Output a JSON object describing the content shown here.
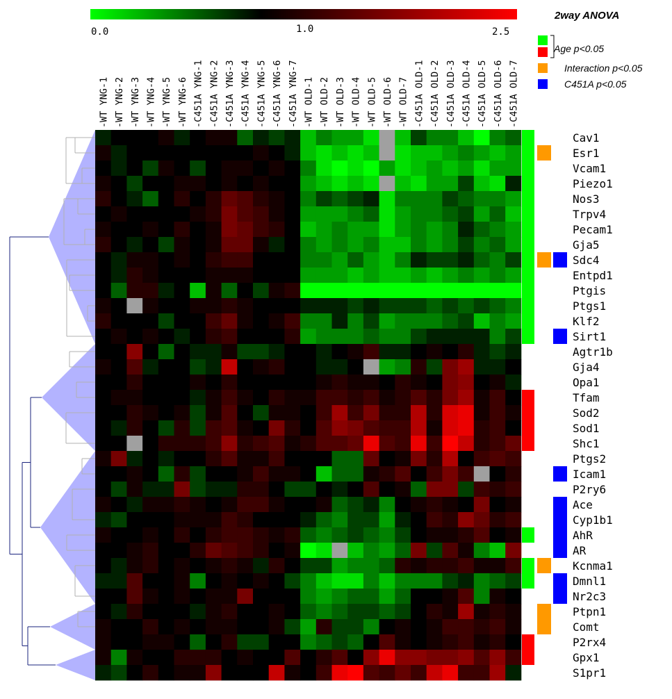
{
  "chart_data": {
    "type": "heatmap",
    "title": "",
    "color_scale": {
      "min_label": "0.0",
      "mid_label": "1.0",
      "max_label": "2.5",
      "low_color": "#00ff00",
      "mid_color": "#000000",
      "high_color": "#ff0000",
      "missing_color": "#a0a0a0"
    },
    "columns": [
      "-WT YNG-1",
      "-WT YNG-2",
      "-WT YNG-3",
      "-WT YNG-4",
      "-WT YNG-5",
      "-WT YNG-6",
      "-C451A YNG-1",
      "-C451A YNG-2",
      "-C451A YNG-3",
      "-C451A YNG-4",
      "-C451A YNG-5",
      "-C451A YNG-6",
      "-C451A YNG-7",
      "-WT OLD-1",
      "-WT OLD-2",
      "-WT OLD-3",
      "-WT OLD-4",
      "-WT OLD-5",
      "-WT OLD-6",
      "-WT OLD-7",
      "-C451A OLD-1",
      "-C451A OLD-2",
      "-C451A OLD-3",
      "-C451A OLD-4",
      "-C451A OLD-5",
      "-C451A OLD-6",
      "-C451A OLD-7"
    ],
    "rows": [
      "Cav1",
      "Esr1",
      "Vcam1",
      "Piezo1",
      "Nos3",
      "Trpv4",
      "Pecam1",
      "Gja5",
      "Sdc4",
      "Entpd1",
      "Ptgis",
      "Ptgs1",
      "Klf2",
      "Sirt1",
      "Agtr1b",
      "Gja4",
      "Opa1",
      "Tfam",
      "Sod2",
      "Sod1",
      "Shc1",
      "Ptgs2",
      "Icam1",
      "P2ry6",
      "Ace",
      "Cyp1b1",
      "AhR",
      "AR",
      "Kcnma1",
      "Dmnl1",
      "Nr2c3",
      "Ptpn1",
      "Comt",
      "P2rx4",
      "Gpx1",
      "S1pr1"
    ],
    "values": [
      [
        0.9,
        1.0,
        1.0,
        1.0,
        1.1,
        0.9,
        1.0,
        1.1,
        1.1,
        0.7,
        0.9,
        0.8,
        0.9,
        0.4,
        0.6,
        0.5,
        0.5,
        0.3,
        null,
        0.4,
        0.8,
        0.6,
        0.6,
        0.4,
        0.2,
        0.6,
        0.7
      ],
      [
        1.1,
        0.9,
        1.0,
        1.0,
        1.0,
        1.0,
        1.0,
        1.0,
        1.0,
        1.0,
        1.1,
        1.0,
        0.9,
        0.4,
        0.3,
        0.4,
        0.3,
        0.4,
        null,
        0.3,
        0.4,
        0.4,
        0.5,
        0.6,
        0.5,
        0.4,
        0.5
      ],
      [
        1.0,
        0.9,
        1.0,
        0.8,
        1.1,
        1.0,
        0.8,
        1.0,
        1.1,
        1.1,
        1.0,
        1.1,
        1.0,
        0.6,
        0.3,
        0.2,
        0.3,
        0.2,
        0.5,
        0.3,
        0.4,
        0.5,
        0.4,
        0.5,
        0.3,
        0.5,
        0.5
      ],
      [
        1.1,
        1.0,
        0.8,
        1.0,
        1.0,
        1.1,
        1.1,
        1.0,
        1.1,
        1.0,
        1.1,
        1.0,
        1.0,
        0.5,
        0.4,
        0.3,
        0.4,
        0.3,
        null,
        0.4,
        0.3,
        0.5,
        0.5,
        0.8,
        0.4,
        0.3,
        0.9
      ],
      [
        1.2,
        1.0,
        0.9,
        0.7,
        1.0,
        1.2,
        1.0,
        1.2,
        1.5,
        1.4,
        1.2,
        1.1,
        1.0,
        0.6,
        0.8,
        0.7,
        0.8,
        0.9,
        0.3,
        0.6,
        0.6,
        0.6,
        0.8,
        0.7,
        0.6,
        0.6,
        0.5
      ],
      [
        1.0,
        1.1,
        1.0,
        1.0,
        1.0,
        1.0,
        1.1,
        1.2,
        1.6,
        1.4,
        1.3,
        1.1,
        1.0,
        0.5,
        0.5,
        0.5,
        0.6,
        0.7,
        0.3,
        0.5,
        0.6,
        0.6,
        0.7,
        0.8,
        0.5,
        0.7,
        0.4
      ],
      [
        1.1,
        1.0,
        1.0,
        1.1,
        1.0,
        1.2,
        1.0,
        1.1,
        1.6,
        1.5,
        1.3,
        1.2,
        1.0,
        0.4,
        0.5,
        0.6,
        0.5,
        0.5,
        0.3,
        0.5,
        0.6,
        0.5,
        0.6,
        0.9,
        0.7,
        0.6,
        0.5
      ],
      [
        1.2,
        1.0,
        0.9,
        1.0,
        0.8,
        1.1,
        1.0,
        1.1,
        1.5,
        1.5,
        1.1,
        0.9,
        1.0,
        0.6,
        0.5,
        0.6,
        0.5,
        0.6,
        0.4,
        0.4,
        0.6,
        0.5,
        0.6,
        0.8,
        0.6,
        0.7,
        0.5
      ],
      [
        1.0,
        0.9,
        1.1,
        1.1,
        1.0,
        1.1,
        1.0,
        1.2,
        1.3,
        1.3,
        1.0,
        1.0,
        1.0,
        0.6,
        0.6,
        0.5,
        0.7,
        0.5,
        0.4,
        0.6,
        0.9,
        0.8,
        0.8,
        0.9,
        0.7,
        0.6,
        0.8
      ],
      [
        1.0,
        0.9,
        1.2,
        1.1,
        1.0,
        1.0,
        1.0,
        1.1,
        1.1,
        1.1,
        1.0,
        1.0,
        1.0,
        0.5,
        0.5,
        0.5,
        0.4,
        0.5,
        0.4,
        0.4,
        0.5,
        0.4,
        0.5,
        0.6,
        0.5,
        0.6,
        0.5
      ],
      [
        1.0,
        0.7,
        1.2,
        1.2,
        0.9,
        1.0,
        0.4,
        1.1,
        0.7,
        1.0,
        0.8,
        1.1,
        1.2,
        0.2,
        0.2,
        0.2,
        0.2,
        0.2,
        0.2,
        0.2,
        0.2,
        0.2,
        0.2,
        0.2,
        0.2,
        0.2,
        0.2
      ],
      [
        1.1,
        1.0,
        null,
        1.1,
        1.0,
        1.0,
        1.1,
        1.1,
        1.2,
        1.1,
        1.0,
        1.0,
        1.0,
        0.9,
        0.9,
        0.9,
        0.8,
        0.9,
        0.8,
        0.8,
        0.8,
        0.7,
        0.8,
        0.7,
        0.8,
        0.7,
        0.6
      ],
      [
        1.2,
        1.0,
        1.0,
        1.0,
        0.8,
        1.0,
        1.0,
        1.3,
        1.5,
        1.1,
        1.0,
        1.1,
        1.3,
        0.6,
        0.6,
        0.9,
        0.6,
        0.8,
        0.5,
        0.6,
        0.6,
        0.6,
        0.7,
        0.8,
        0.4,
        0.6,
        0.5
      ],
      [
        1.0,
        1.1,
        1.0,
        1.1,
        1.0,
        0.9,
        1.0,
        1.2,
        1.3,
        1.0,
        1.0,
        1.0,
        1.2,
        0.5,
        0.6,
        0.6,
        0.6,
        0.7,
        0.6,
        0.6,
        0.8,
        0.9,
        0.9,
        0.9,
        0.9,
        0.6,
        0.8
      ],
      [
        1.0,
        1.0,
        1.7,
        1.0,
        0.7,
        1.0,
        0.9,
        0.9,
        1.1,
        0.8,
        0.8,
        0.9,
        1.0,
        1.0,
        0.9,
        1.0,
        1.1,
        1.3,
        0.9,
        0.9,
        1.0,
        1.1,
        1.0,
        1.2,
        0.9,
        0.8,
        0.9
      ],
      [
        1.1,
        1.0,
        1.4,
        0.9,
        1.0,
        1.0,
        0.8,
        0.9,
        2.0,
        1.0,
        1.1,
        1.2,
        1.0,
        1.0,
        0.9,
        0.9,
        1.0,
        null,
        0.5,
        0.6,
        1.2,
        0.8,
        1.6,
        1.8,
        0.9,
        0.9,
        1.0
      ],
      [
        1.0,
        1.0,
        1.2,
        1.0,
        1.0,
        1.0,
        1.1,
        1.0,
        1.2,
        1.0,
        1.0,
        1.0,
        1.0,
        1.0,
        1.1,
        1.2,
        1.1,
        1.1,
        1.0,
        1.2,
        1.1,
        1.0,
        1.6,
        1.7,
        1.0,
        1.1,
        0.9
      ],
      [
        1.0,
        1.1,
        1.1,
        1.0,
        1.0,
        1.0,
        0.9,
        1.1,
        1.3,
        1.1,
        1.0,
        1.2,
        1.1,
        1.1,
        1.3,
        1.3,
        1.2,
        1.3,
        1.1,
        1.2,
        1.4,
        1.2,
        1.6,
        1.8,
        1.1,
        1.3,
        1.0
      ],
      [
        1.0,
        1.0,
        1.2,
        1.1,
        1.0,
        1.1,
        0.8,
        1.1,
        1.4,
        1.0,
        0.8,
        1.1,
        1.1,
        1.0,
        1.3,
        1.8,
        1.3,
        1.6,
        1.2,
        1.2,
        1.9,
        1.2,
        2.1,
        2.2,
        1.1,
        1.3,
        1.1
      ],
      [
        1.0,
        0.9,
        1.2,
        1.0,
        0.8,
        1.2,
        0.8,
        1.3,
        1.4,
        1.1,
        1.0,
        1.6,
        1.2,
        1.0,
        1.4,
        1.7,
        1.6,
        1.4,
        1.3,
        1.3,
        1.9,
        1.1,
        2.1,
        2.2,
        1.2,
        1.3,
        1.0
      ],
      [
        1.0,
        1.0,
        null,
        1.0,
        1.2,
        1.2,
        1.2,
        1.3,
        1.7,
        1.2,
        1.3,
        1.4,
        1.1,
        1.2,
        1.4,
        1.4,
        1.5,
        2.2,
        1.4,
        1.3,
        2.2,
        1.3,
        2.3,
        2.0,
        1.2,
        1.3,
        1.5
      ],
      [
        1.1,
        1.6,
        0.9,
        1.0,
        0.9,
        1.0,
        1.0,
        1.2,
        1.4,
        1.1,
        1.1,
        1.3,
        1.0,
        1.0,
        1.0,
        0.7,
        0.7,
        1.5,
        1.0,
        1.1,
        1.6,
        1.2,
        1.9,
        1.0,
        1.3,
        1.4,
        1.3
      ],
      [
        1.0,
        1.0,
        1.1,
        1.0,
        0.7,
        1.2,
        0.8,
        1.0,
        1.0,
        1.1,
        1.3,
        1.1,
        1.1,
        1.0,
        0.4,
        0.7,
        0.7,
        1.1,
        1.2,
        1.4,
        1.0,
        1.3,
        1.6,
        1.3,
        null,
        1.0,
        1.2
      ],
      [
        1.0,
        0.8,
        1.1,
        0.9,
        0.9,
        1.6,
        0.8,
        0.9,
        0.9,
        1.2,
        1.2,
        1.0,
        0.8,
        0.8,
        1.0,
        0.9,
        1.0,
        1.4,
        1.0,
        1.1,
        0.7,
        1.6,
        1.6,
        0.8,
        1.3,
        1.2,
        1.3
      ],
      [
        1.1,
        1.0,
        0.9,
        1.1,
        1.1,
        1.2,
        1.1,
        1.0,
        1.1,
        1.3,
        1.3,
        1.1,
        1.0,
        1.0,
        1.1,
        0.7,
        0.8,
        0.9,
        0.6,
        1.0,
        1.1,
        1.2,
        1.1,
        1.0,
        1.6,
        1.0,
        1.1
      ],
      [
        0.9,
        0.8,
        1.0,
        1.0,
        1.0,
        1.1,
        1.1,
        1.1,
        1.3,
        1.2,
        1.0,
        1.0,
        1.0,
        0.9,
        0.7,
        0.6,
        0.8,
        0.8,
        0.5,
        0.9,
        1.0,
        1.3,
        1.2,
        1.7,
        1.5,
        1.2,
        1.3
      ],
      [
        1.1,
        1.0,
        1.0,
        1.1,
        1.0,
        1.2,
        1.0,
        1.2,
        1.3,
        1.3,
        1.2,
        1.1,
        1.2,
        0.7,
        0.6,
        0.7,
        0.8,
        0.7,
        0.6,
        0.8,
        1.0,
        1.1,
        1.1,
        1.2,
        1.4,
        1.0,
        1.1
      ],
      [
        1.0,
        1.0,
        1.1,
        1.2,
        1.0,
        1.0,
        1.2,
        1.5,
        1.4,
        1.3,
        1.2,
        1.0,
        1.1,
        0.2,
        0.3,
        null,
        0.4,
        0.6,
        0.5,
        0.7,
        1.6,
        0.8,
        1.4,
        1.1,
        0.6,
        0.4,
        1.6
      ],
      [
        1.0,
        0.9,
        1.1,
        1.2,
        1.0,
        1.1,
        1.0,
        1.1,
        1.2,
        1.1,
        0.9,
        1.2,
        1.0,
        0.8,
        0.8,
        0.5,
        0.6,
        0.6,
        0.7,
        1.2,
        1.1,
        1.2,
        1.2,
        1.3,
        1.1,
        1.1,
        1.3
      ],
      [
        0.9,
        0.9,
        1.4,
        1.0,
        1.0,
        1.1,
        0.6,
        1.0,
        1.1,
        1.0,
        1.1,
        1.0,
        0.8,
        0.6,
        0.4,
        0.3,
        0.3,
        0.6,
        0.4,
        0.6,
        0.6,
        0.6,
        0.8,
        0.9,
        0.6,
        0.7,
        0.8
      ],
      [
        1.0,
        1.0,
        1.4,
        1.1,
        1.0,
        1.1,
        1.0,
        1.1,
        1.1,
        1.6,
        1.0,
        1.0,
        1.0,
        0.6,
        0.5,
        0.6,
        0.7,
        0.7,
        0.5,
        0.7,
        1.0,
        1.0,
        1.1,
        1.4,
        0.6,
        1.1,
        1.0
      ],
      [
        1.0,
        0.9,
        1.2,
        1.0,
        1.0,
        1.0,
        0.9,
        1.1,
        1.2,
        1.0,
        1.0,
        1.1,
        1.0,
        0.7,
        0.6,
        0.7,
        0.8,
        0.8,
        0.7,
        0.8,
        1.0,
        1.2,
        1.1,
        1.8,
        1.1,
        1.2,
        1.1
      ],
      [
        1.1,
        1.0,
        1.0,
        1.2,
        1.0,
        1.1,
        1.0,
        1.1,
        1.1,
        1.0,
        1.0,
        1.1,
        0.8,
        0.5,
        1.2,
        0.8,
        0.8,
        0.6,
        1.0,
        1.1,
        1.0,
        1.1,
        1.3,
        1.3,
        1.2,
        1.3,
        1.1
      ],
      [
        1.1,
        1.0,
        1.0,
        1.1,
        1.1,
        1.0,
        0.7,
        1.0,
        1.2,
        0.8,
        0.8,
        1.0,
        1.0,
        0.6,
        0.7,
        0.8,
        0.7,
        1.0,
        1.4,
        1.1,
        1.0,
        1.1,
        1.2,
        1.3,
        1.1,
        1.2,
        1.0
      ],
      [
        1.1,
        0.6,
        1.1,
        1.0,
        1.0,
        1.2,
        1.2,
        1.2,
        1.0,
        1.1,
        1.0,
        1.0,
        1.4,
        1.0,
        1.2,
        1.4,
        1.0,
        1.7,
        2.2,
        1.7,
        1.7,
        1.6,
        1.6,
        1.7,
        1.4,
        1.7,
        1.3
      ],
      [
        0.9,
        0.8,
        1.0,
        1.2,
        1.0,
        1.1,
        1.1,
        1.7,
        1.0,
        1.0,
        1.0,
        2.0,
        1.1,
        1.0,
        1.3,
        2.2,
        2.3,
        1.4,
        1.3,
        1.5,
        1.3,
        2.0,
        2.2,
        1.3,
        1.3,
        1.8,
        0.9
      ]
    ],
    "significance": {
      "legend_title": "2way ANOVA",
      "age_label": "Age p<0.05",
      "interaction_label": "Interaction p<0.05",
      "c451a_label": "C451A p<0.05",
      "age_down_color": "#00ff00",
      "age_up_color": "#ff0000",
      "interaction_color": "#ff9900",
      "c451a_color": "#0000ff",
      "age_down_rows": [
        0,
        13
      ],
      "age_up_rows_1": [
        17,
        20
      ],
      "age_down_rows_2": [
        26,
        26
      ],
      "age_down_rows_3": [
        28,
        29
      ],
      "age_up_rows_2": [
        33,
        34
      ],
      "interaction_rows": [
        [
          1,
          1
        ],
        [
          8,
          8
        ],
        [
          28,
          28
        ],
        [
          31,
          32
        ]
      ],
      "c451a_rows": [
        [
          8,
          8
        ],
        [
          13,
          13
        ],
        [
          22,
          22
        ],
        [
          24,
          27
        ],
        [
          29,
          30
        ]
      ]
    },
    "dendrogram": {
      "line_color": "#1a237e",
      "fan_color": "#9999ff"
    }
  }
}
